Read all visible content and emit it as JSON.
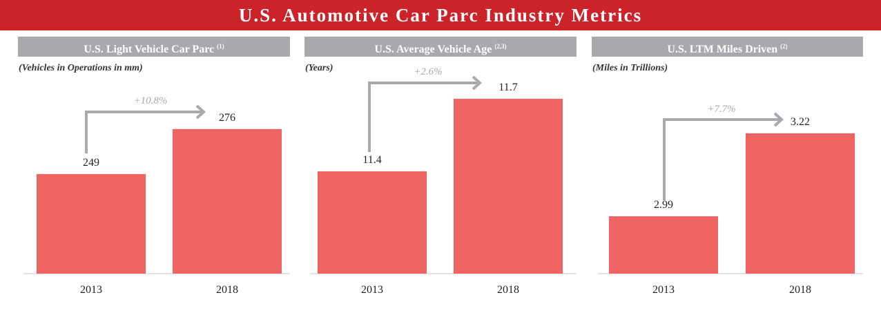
{
  "title": "U.S. Automotive Car Parc Industry Metrics",
  "colors": {
    "title_bar": "#cc2229",
    "panel_header": "#a7a9ac",
    "bar": "#ef6363",
    "arrow": "#a7a9ac"
  },
  "chart_data": [
    {
      "type": "bar",
      "title": "U.S. Light Vehicle Car Parc",
      "footnote": "(1)",
      "subtitle": "(Vehicles in Operations in mm)",
      "categories": [
        "2013",
        "2018"
      ],
      "values": [
        249,
        276
      ],
      "value_labels": [
        "249",
        "276"
      ],
      "growth_label": "+10.8%"
    },
    {
      "type": "bar",
      "title": "U.S. Average Vehicle Age",
      "footnote": "(2,3)",
      "subtitle": "(Years)",
      "categories": [
        "2013",
        "2018"
      ],
      "values": [
        11.4,
        11.7
      ],
      "value_labels": [
        "11.4",
        "11.7"
      ],
      "growth_label": "+2.6%"
    },
    {
      "type": "bar",
      "title": "U.S. LTM Miles Driven",
      "footnote": "(2)",
      "subtitle": "(Miles in Trillions)",
      "categories": [
        "2013",
        "2018"
      ],
      "values": [
        2.99,
        3.22
      ],
      "value_labels": [
        "2.99",
        "3.22"
      ],
      "growth_label": "+7.7%"
    }
  ]
}
